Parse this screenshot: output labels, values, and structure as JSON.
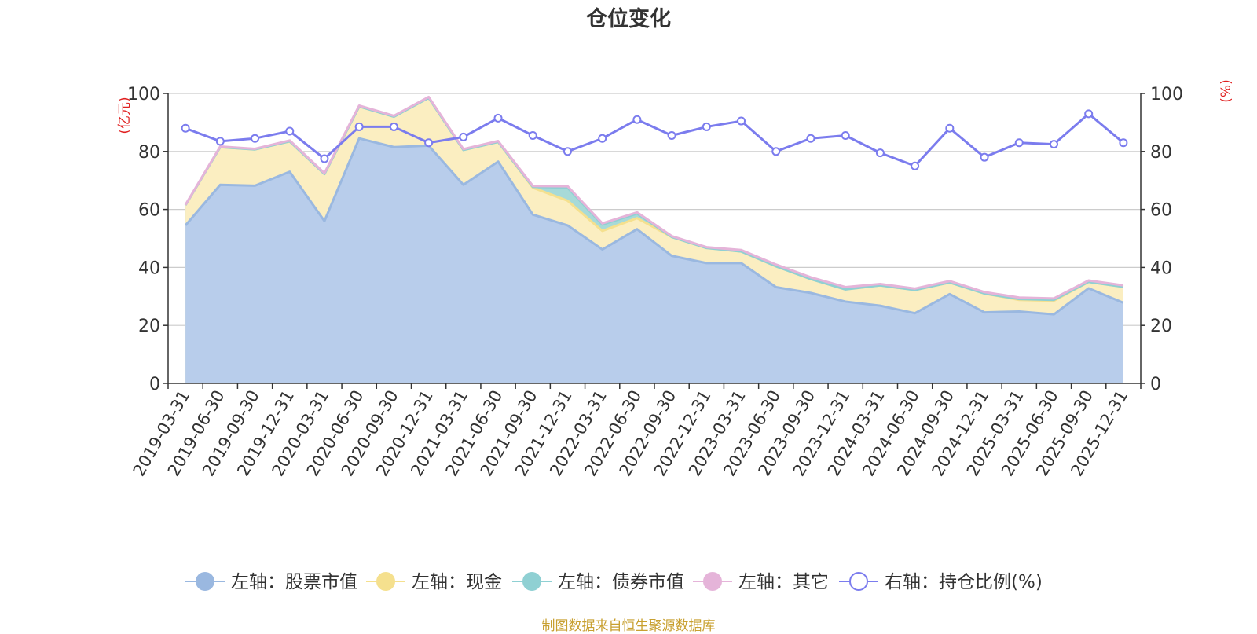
{
  "chart_data": {
    "type": "area",
    "title": "仓位变化",
    "y_left_label": "(亿元)",
    "y_right_label": "(%)",
    "y_left_range": [
      0,
      100
    ],
    "y_right_range": [
      0,
      100
    ],
    "y_ticks": [
      0,
      20,
      40,
      60,
      80,
      100
    ],
    "categories": [
      "2019-03-31",
      "2019-06-30",
      "2019-09-30",
      "2019-12-31",
      "2020-03-31",
      "2020-06-30",
      "2020-09-30",
      "2020-12-31",
      "2021-03-31",
      "2021-06-30",
      "2021-09-30",
      "2021-12-31",
      "2022-03-31",
      "2022-06-30",
      "2022-09-30",
      "2022-12-31",
      "2023-03-31",
      "2023-06-30",
      "2023-09-30",
      "2023-12-31",
      "2024-03-31",
      "2024-06-30",
      "2024-09-30",
      "2024-12-31",
      "2025-03-31",
      "2025-06-30",
      "2025-09-30",
      "2025-12-31"
    ],
    "series": [
      {
        "name": "左轴：股票市值",
        "axis": "left",
        "kind": "stacked-area",
        "color": "#9ab8e0",
        "fill": "#b8cdeb",
        "values": [
          54.5,
          68.5,
          68.2,
          73,
          56,
          84.5,
          81.5,
          82,
          68.5,
          76.5,
          58.2,
          54.5,
          46.2,
          53.2,
          44,
          41.5,
          41.5,
          33.2,
          31.2,
          28.2,
          26.8,
          24.2,
          30.8,
          24.5,
          24.8,
          23.8,
          32.8,
          27.8
        ]
      },
      {
        "name": "左轴：现金",
        "axis": "left",
        "kind": "stacked-area",
        "color": "#f5e08e",
        "fill": "#fbeec1",
        "values": [
          7,
          13,
          12.5,
          10.5,
          16.2,
          11,
          10.5,
          16.5,
          12,
          6.8,
          9.3,
          8.5,
          6.4,
          3.8,
          6.5,
          5.2,
          4,
          7.2,
          4.8,
          4.2,
          7,
          8,
          4,
          6.5,
          4,
          4.7,
          2.2,
          5.5
        ]
      },
      {
        "name": "左轴：债券市值",
        "axis": "left",
        "kind": "stacked-area",
        "color": "#8fd0d3",
        "fill": "#a7dad8",
        "values": [
          0,
          0,
          0,
          0,
          0,
          0,
          0,
          0,
          0,
          0,
          0.3,
          4.5,
          2.2,
          1.6,
          0,
          0,
          0,
          0,
          0,
          0,
          0,
          0,
          0,
          0,
          0.3,
          0.3,
          0,
          0
        ]
      },
      {
        "name": "左轴：其它",
        "axis": "left",
        "kind": "stacked-area",
        "color": "#e5b4d9",
        "fill": "#f0c9e4",
        "values": [
          0.1,
          0.2,
          0.2,
          0.3,
          0.3,
          0.3,
          0.3,
          0.3,
          0.3,
          0.3,
          0.3,
          0.5,
          0.4,
          0.4,
          0.3,
          0.3,
          0.5,
          0.6,
          0.6,
          0.8,
          0.5,
          0.5,
          0.5,
          0.5,
          0.5,
          0.5,
          0.5,
          0.5
        ]
      },
      {
        "name": "右轴：持仓比例(%)",
        "axis": "right",
        "kind": "line",
        "color": "#7b7cee",
        "values": [
          88,
          83.5,
          84.5,
          87,
          77.5,
          88.5,
          88.5,
          83,
          85,
          91.5,
          85.5,
          80,
          84.5,
          91,
          85.5,
          88.5,
          90.5,
          80,
          84.5,
          85.5,
          79.5,
          75,
          88,
          78,
          83,
          82.5,
          93,
          83
        ]
      }
    ],
    "legend_position": "bottom",
    "grid": true
  },
  "footer": "制图数据来自恒生聚源数据库"
}
